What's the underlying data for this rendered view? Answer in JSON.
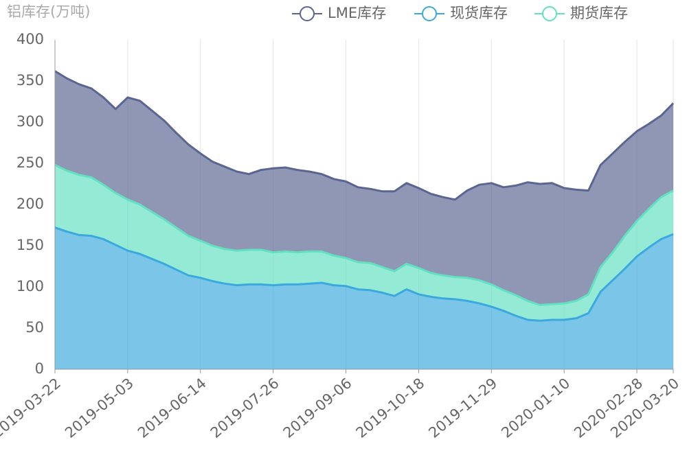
{
  "chart_data": {
    "type": "stacked_area",
    "title": "铝库存(万吨)",
    "categories": [
      "2019-03-22",
      null,
      null,
      null,
      null,
      null,
      "2019-05-03",
      null,
      null,
      null,
      null,
      null,
      "2019-06-14",
      null,
      null,
      null,
      null,
      null,
      "2019-07-26",
      null,
      null,
      null,
      null,
      null,
      "2019-09-06",
      null,
      null,
      null,
      null,
      null,
      "2019-10-18",
      null,
      null,
      null,
      null,
      null,
      "2019-11-29",
      null,
      null,
      null,
      null,
      null,
      "2020-01-10",
      null,
      null,
      null,
      null,
      null,
      "2020-02-28",
      null,
      null,
      "2020-03-20"
    ],
    "series": [
      {
        "name": "LME库存",
        "color": "#5b6592",
        "values": [
          114,
          112,
          110,
          108,
          106,
          102,
          124,
          126,
          123,
          120,
          115,
          111,
          106,
          102,
          100,
          96,
          92,
          97,
          102,
          102,
          100,
          97,
          94,
          93,
          93,
          91,
          90,
          92,
          97,
          98,
          97,
          96,
          95,
          94,
          106,
          116,
          123,
          125,
          133,
          144,
          147,
          147,
          140,
          135,
          126,
          124,
          120,
          114,
          109,
          103,
          99,
          106
        ]
      },
      {
        "name": "现货库存",
        "color": "#3ba9dd",
        "values": [
          172,
          167,
          163,
          162,
          158,
          151,
          144,
          140,
          134,
          128,
          121,
          114,
          111,
          107,
          104,
          102,
          103,
          103,
          102,
          103,
          103,
          104,
          105,
          102,
          101,
          97,
          96,
          93,
          89,
          97,
          91,
          88,
          86,
          85,
          83,
          80,
          76,
          71,
          65,
          60,
          59,
          60,
          60,
          62,
          68,
          94,
          108,
          122,
          137,
          148,
          158,
          164
        ]
      },
      {
        "name": "期货库存",
        "color": "#62e0c1",
        "values": [
          76,
          74,
          73,
          71,
          66,
          63,
          62,
          60,
          57,
          54,
          51,
          48,
          45,
          43,
          42,
          42,
          42,
          42,
          40,
          40,
          39,
          39,
          38,
          36,
          34,
          33,
          33,
          31,
          30,
          31,
          32,
          29,
          28,
          27,
          28,
          28,
          27,
          25,
          25,
          23,
          19,
          19,
          20,
          21,
          23,
          30,
          34,
          40,
          43,
          47,
          51,
          53
        ]
      }
    ],
    "stack_order": [
      1,
      2,
      0
    ],
    "ylim": [
      0,
      400
    ],
    "yticks": [
      0,
      50,
      100,
      150,
      200,
      250,
      300,
      350,
      400
    ],
    "grid": true
  }
}
